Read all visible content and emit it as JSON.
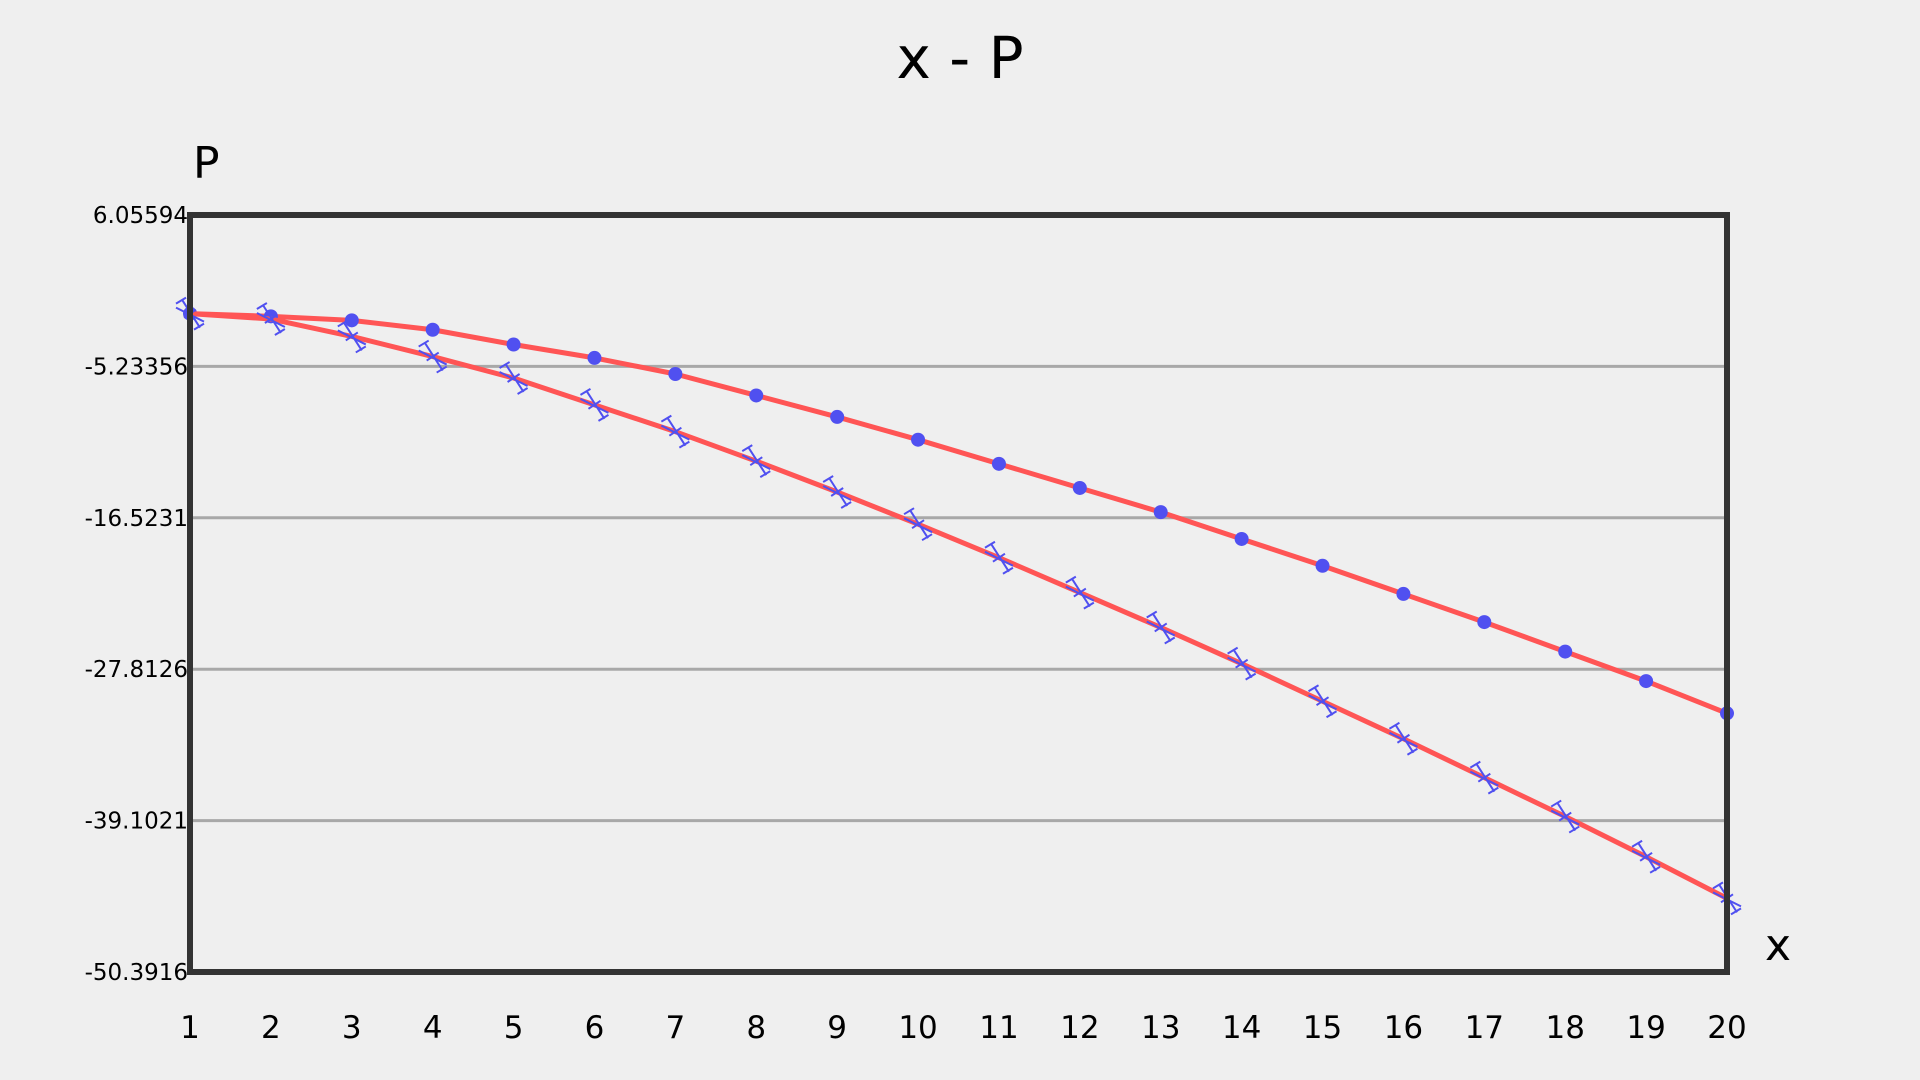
{
  "chart_data": {
    "type": "line",
    "title": "x - P",
    "xlabel": "x",
    "ylabel": "P",
    "x": [
      1,
      2,
      3,
      4,
      5,
      6,
      7,
      8,
      9,
      10,
      11,
      12,
      13,
      14,
      15,
      16,
      17,
      18,
      19,
      20
    ],
    "x_ticks": [
      "1",
      "2",
      "3",
      "4",
      "5",
      "6",
      "7",
      "8",
      "9",
      "10",
      "11",
      "12",
      "13",
      "14",
      "15",
      "16",
      "17",
      "18",
      "19",
      "20"
    ],
    "y_ticks": [
      "6.05594",
      "-5.23356",
      "-16.5231",
      "-27.8126",
      "-39.1021",
      "-50.3916"
    ],
    "ylim": [
      -50.3916,
      6.05594
    ],
    "grid": true,
    "series": [
      {
        "marker": "circle",
        "color": "#ff5555",
        "marker_color": "#5050f0",
        "values": [
          -1.3,
          -1.5,
          -1.8,
          -2.5,
          -3.6,
          -4.6,
          -5.8,
          -7.4,
          -9.0,
          -10.7,
          -12.5,
          -14.3,
          -16.1,
          -18.1,
          -20.1,
          -22.2,
          -24.3,
          -26.5,
          -28.7,
          -31.1
        ]
      },
      {
        "marker": "zigzag",
        "color": "#ff5555",
        "marker_color": "#5050f0",
        "values": [
          -1.3,
          -1.7,
          -3.0,
          -4.5,
          -6.1,
          -8.1,
          -10.1,
          -12.3,
          -14.6,
          -17.0,
          -19.5,
          -22.1,
          -24.7,
          -27.4,
          -30.2,
          -33.0,
          -35.9,
          -38.8,
          -41.8,
          -44.9
        ]
      }
    ]
  }
}
